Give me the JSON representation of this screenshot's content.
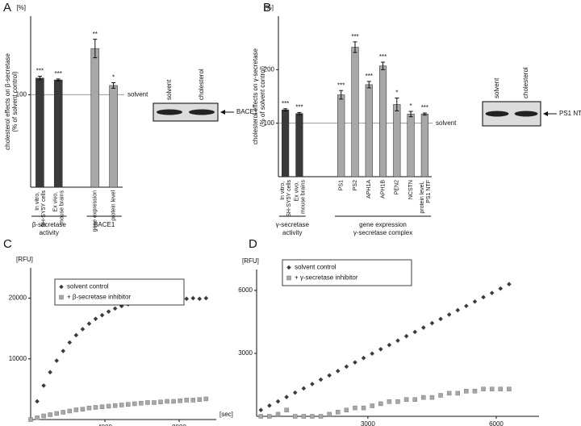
{
  "chart_data": [
    {
      "type": "bar",
      "panel": "A",
      "unit": "[%]",
      "y_label": [
        "cholesterol effects on β-secretase",
        "(% of solvent control)"
      ],
      "categories": [
        "In vitro, SH-SY5Y cells",
        "Ex vivo, mouse brains",
        "gene expression",
        "protein level"
      ],
      "values": [
        118,
        116,
        150,
        110
      ],
      "errors": [
        2,
        1,
        10,
        3
      ],
      "significance": [
        "***",
        "***",
        "**",
        "*"
      ],
      "colors": [
        "#3a3a3a",
        "#3a3a3a",
        "#a8a8a8",
        "#a8a8a8"
      ],
      "groups": [
        [
          "β-secretase",
          "activity"
        ],
        [
          "BACE1"
        ]
      ],
      "ylim": [
        0,
        185
      ],
      "yticks": [
        100
      ],
      "reference_line": {
        "value": 100,
        "label": "solvent"
      },
      "blot": {
        "lanes": [
          "solvent",
          "cholesterol"
        ],
        "label": "BACE1"
      }
    },
    {
      "type": "bar",
      "panel": "B",
      "unit": "[%]",
      "y_label": [
        "cholesterol effects on γ-secretase",
        "(% of solvent control)"
      ],
      "categories": [
        "In vitro, SH-SY5Y cells",
        "Ex vivo, mouse brains",
        "PS1",
        "PS2",
        "APH1A",
        "APH1B",
        "PEN2",
        "NCSTN",
        "protein level, PS1 NTF"
      ],
      "values": [
        125,
        118,
        153,
        242,
        172,
        207,
        135,
        117,
        117
      ],
      "errors": [
        2,
        2,
        8,
        10,
        6,
        7,
        12,
        5,
        2
      ],
      "significance": [
        "***",
        "***",
        "***",
        "***",
        "***",
        "***",
        "*",
        "*",
        "***"
      ],
      "colors": [
        "#3a3a3a",
        "#3a3a3a",
        "#a8a8a8",
        "#a8a8a8",
        "#a8a8a8",
        "#a8a8a8",
        "#a8a8a8",
        "#a8a8a8",
        "#a8a8a8"
      ],
      "groups": [
        [
          "γ-secretase",
          "activity"
        ],
        [
          "gene expression",
          "γ-secretase complex"
        ]
      ],
      "ylim": [
        0,
        300
      ],
      "yticks": [
        100,
        200
      ],
      "reference_line": {
        "value": 100,
        "label": "solvent"
      },
      "blot": {
        "lanes": [
          "solvent",
          "cholesterol"
        ],
        "label": "PS1 NTF"
      }
    },
    {
      "type": "scatter",
      "panel": "C",
      "y_unit": "[RFU]",
      "x_unit": "[sec]",
      "x": [
        0,
        350,
        700,
        1050,
        1400,
        1750,
        2100,
        2450,
        2800,
        3150,
        3500,
        3850,
        4200,
        4550,
        4900,
        5250,
        5600,
        5950,
        6300,
        6650,
        7000,
        7350,
        7700,
        8050,
        8400,
        8750,
        9100,
        9450
      ],
      "series": [
        {
          "name": "solvent control",
          "color": "#3c3c3c",
          "marker": "diamond",
          "values": [
            0,
            3000,
            5600,
            7800,
            9700,
            11300,
            12700,
            13900,
            14900,
            15800,
            16600,
            17200,
            17800,
            18300,
            18700,
            19000,
            19300,
            19500,
            19700,
            19800,
            19900,
            20000,
            20000,
            20000,
            19900,
            20000,
            19900,
            20000
          ]
        },
        {
          "name": "+ β-secretase inhibitor",
          "color": "#a8a8a8",
          "marker": "square",
          "values": [
            0,
            300,
            600,
            800,
            1000,
            1200,
            1400,
            1600,
            1700,
            1900,
            2000,
            2100,
            2200,
            2300,
            2400,
            2500,
            2600,
            2700,
            2800,
            2800,
            2900,
            3000,
            3000,
            3100,
            3200,
            3200,
            3300,
            3400
          ]
        }
      ],
      "xlim": [
        0,
        10000
      ],
      "ylim": [
        0,
        25000
      ],
      "xticks": [
        4000,
        8000
      ],
      "yticks": [
        10000,
        20000
      ]
    },
    {
      "type": "scatter",
      "panel": "D",
      "y_unit": "[RFU]",
      "x": [
        500,
        700,
        900,
        1100,
        1300,
        1500,
        1700,
        1900,
        2100,
        2300,
        2500,
        2700,
        2900,
        3100,
        3300,
        3500,
        3700,
        3900,
        4100,
        4300,
        4500,
        4700,
        4900,
        5100,
        5300,
        5500,
        5700,
        5900,
        6100,
        6300
      ],
      "series": [
        {
          "name": "solvent control",
          "color": "#3c3c3c",
          "marker": "diamond",
          "values": [
            300,
            510,
            710,
            920,
            1130,
            1330,
            1540,
            1750,
            1950,
            2160,
            2370,
            2570,
            2780,
            2990,
            3200,
            3400,
            3610,
            3820,
            4020,
            4230,
            4440,
            4640,
            4850,
            5060,
            5260,
            5470,
            5680,
            5880,
            6090,
            6300
          ]
        },
        {
          "name": "+ γ-secretase inhibitor",
          "color": "#a8a8a8",
          "marker": "square",
          "values": [
            0,
            0,
            100,
            300,
            0,
            0,
            0,
            0,
            100,
            200,
            300,
            400,
            400,
            500,
            600,
            700,
            700,
            800,
            800,
            900,
            900,
            1000,
            1100,
            1100,
            1200,
            1200,
            1300,
            1300,
            1300,
            1300
          ]
        }
      ],
      "xlim": [
        400,
        7000
      ],
      "ylim": [
        0,
        7000
      ],
      "xticks": [
        3000,
        6000
      ],
      "yticks": [
        3000,
        6000
      ]
    }
  ]
}
